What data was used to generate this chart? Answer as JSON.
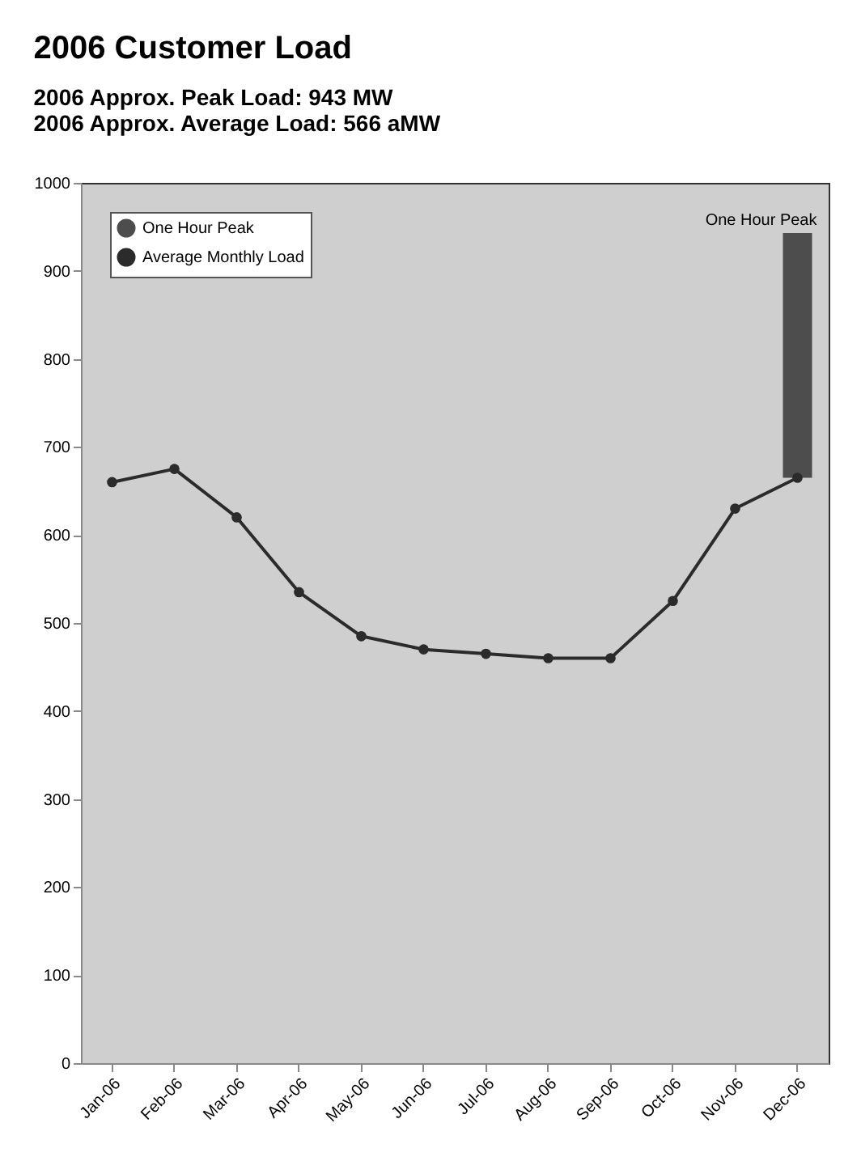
{
  "chart_data": {
    "type": "line",
    "title": "2006 Customer Load",
    "annotations": [
      "2006 Approx. Peak Load: 943 MW",
      "2006 Approx. Average Load: 566 aMW",
      {
        "text": "One Hour Peak",
        "x": "Dec-06",
        "y": 943
      }
    ],
    "categories": [
      "Jan-06",
      "Feb-06",
      "Mar-06",
      "Apr-06",
      "May-06",
      "Jun-06",
      "Jul-06",
      "Aug-06",
      "Sep-06",
      "Oct-06",
      "Nov-06",
      "Dec-06"
    ],
    "series": [
      {
        "name": "One Hour Peak",
        "type": "bar",
        "color": "#4d4d4d",
        "base": [
          null,
          null,
          null,
          null,
          null,
          null,
          null,
          null,
          null,
          null,
          null,
          665
        ],
        "values": [
          null,
          null,
          null,
          null,
          null,
          null,
          null,
          null,
          null,
          null,
          null,
          278
        ]
      },
      {
        "name": "Average Monthly Load",
        "color": "#2b2b2b",
        "marker": "circle",
        "values": [
          660,
          675,
          620,
          535,
          485,
          470,
          465,
          460,
          460,
          525,
          630,
          665
        ]
      }
    ],
    "ylim": [
      0,
      1000
    ],
    "yticks": [
      0,
      100,
      200,
      300,
      400,
      500,
      600,
      700,
      800,
      900,
      1000
    ],
    "legend": "top left"
  }
}
